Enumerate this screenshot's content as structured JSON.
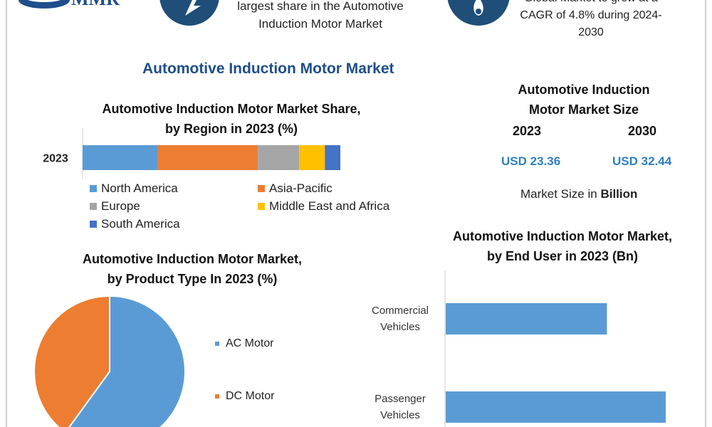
{
  "header": {
    "logo_text": "MMR",
    "left_callout": [
      "largest share in the Automotive",
      "Induction Motor Market"
    ],
    "right_callout": [
      "Global Market to grow at a",
      "CAGR of 4.8% during 2024-",
      "2030"
    ]
  },
  "main_title": "Automotive Induction Motor Market",
  "market_size": {
    "title_lines": [
      "Automotive Induction",
      "Motor Market Size"
    ],
    "years": [
      "2023",
      "2030"
    ],
    "values": [
      "USD 23.36",
      "USD 32.44"
    ],
    "note_prefix": "Market Size in ",
    "note_bold": "Billion"
  },
  "colors": {
    "north_america": "#5b9bd5",
    "asia_pacific": "#ed7d31",
    "europe": "#a5a5a5",
    "mea": "#ffc000",
    "south_america": "#4472c4",
    "title_blue": "#1f4e8c",
    "usd_blue": "#2e7fc0"
  },
  "chart_data": [
    {
      "type": "bar",
      "orientation": "horizontal-stacked",
      "title": "Automotive Induction Motor Market Share, by Region in 2023 (%)",
      "title_lines": [
        "Automotive Induction Motor Market Share,",
        "by Region in 2023 (%)"
      ],
      "categories": [
        "2023"
      ],
      "series": [
        {
          "name": "North America",
          "values": [
            29
          ]
        },
        {
          "name": "Asia-Pacific",
          "values": [
            39
          ]
        },
        {
          "name": "Europe",
          "values": [
            16
          ]
        },
        {
          "name": "Middle East and Africa",
          "values": [
            10
          ]
        },
        {
          "name": "South America",
          "values": [
            6
          ]
        }
      ],
      "xlim": [
        0,
        100
      ],
      "legend": "bottom"
    },
    {
      "type": "pie",
      "title": "Automotive Induction Motor Market, by Product Type In 2023 (%)",
      "title_lines": [
        "Automotive Induction Motor Market,",
        "by Product Type In 2023 (%)"
      ],
      "categories": [
        "AC Motor",
        "DC Motor"
      ],
      "values": [
        60,
        40
      ],
      "legend": "right"
    },
    {
      "type": "bar",
      "orientation": "horizontal",
      "title": "Automotive Induction Motor Market, by End User in 2023 (Bn)",
      "title_lines": [
        "Automotive Induction Motor Market,",
        "by End User in 2023 (Bn)"
      ],
      "categories": [
        [
          "Commercial",
          "Vehicles"
        ],
        [
          "Passenger",
          "Vehicles"
        ]
      ],
      "values": [
        8.5,
        11.6
      ],
      "xlim": [
        0,
        12.5
      ]
    }
  ]
}
